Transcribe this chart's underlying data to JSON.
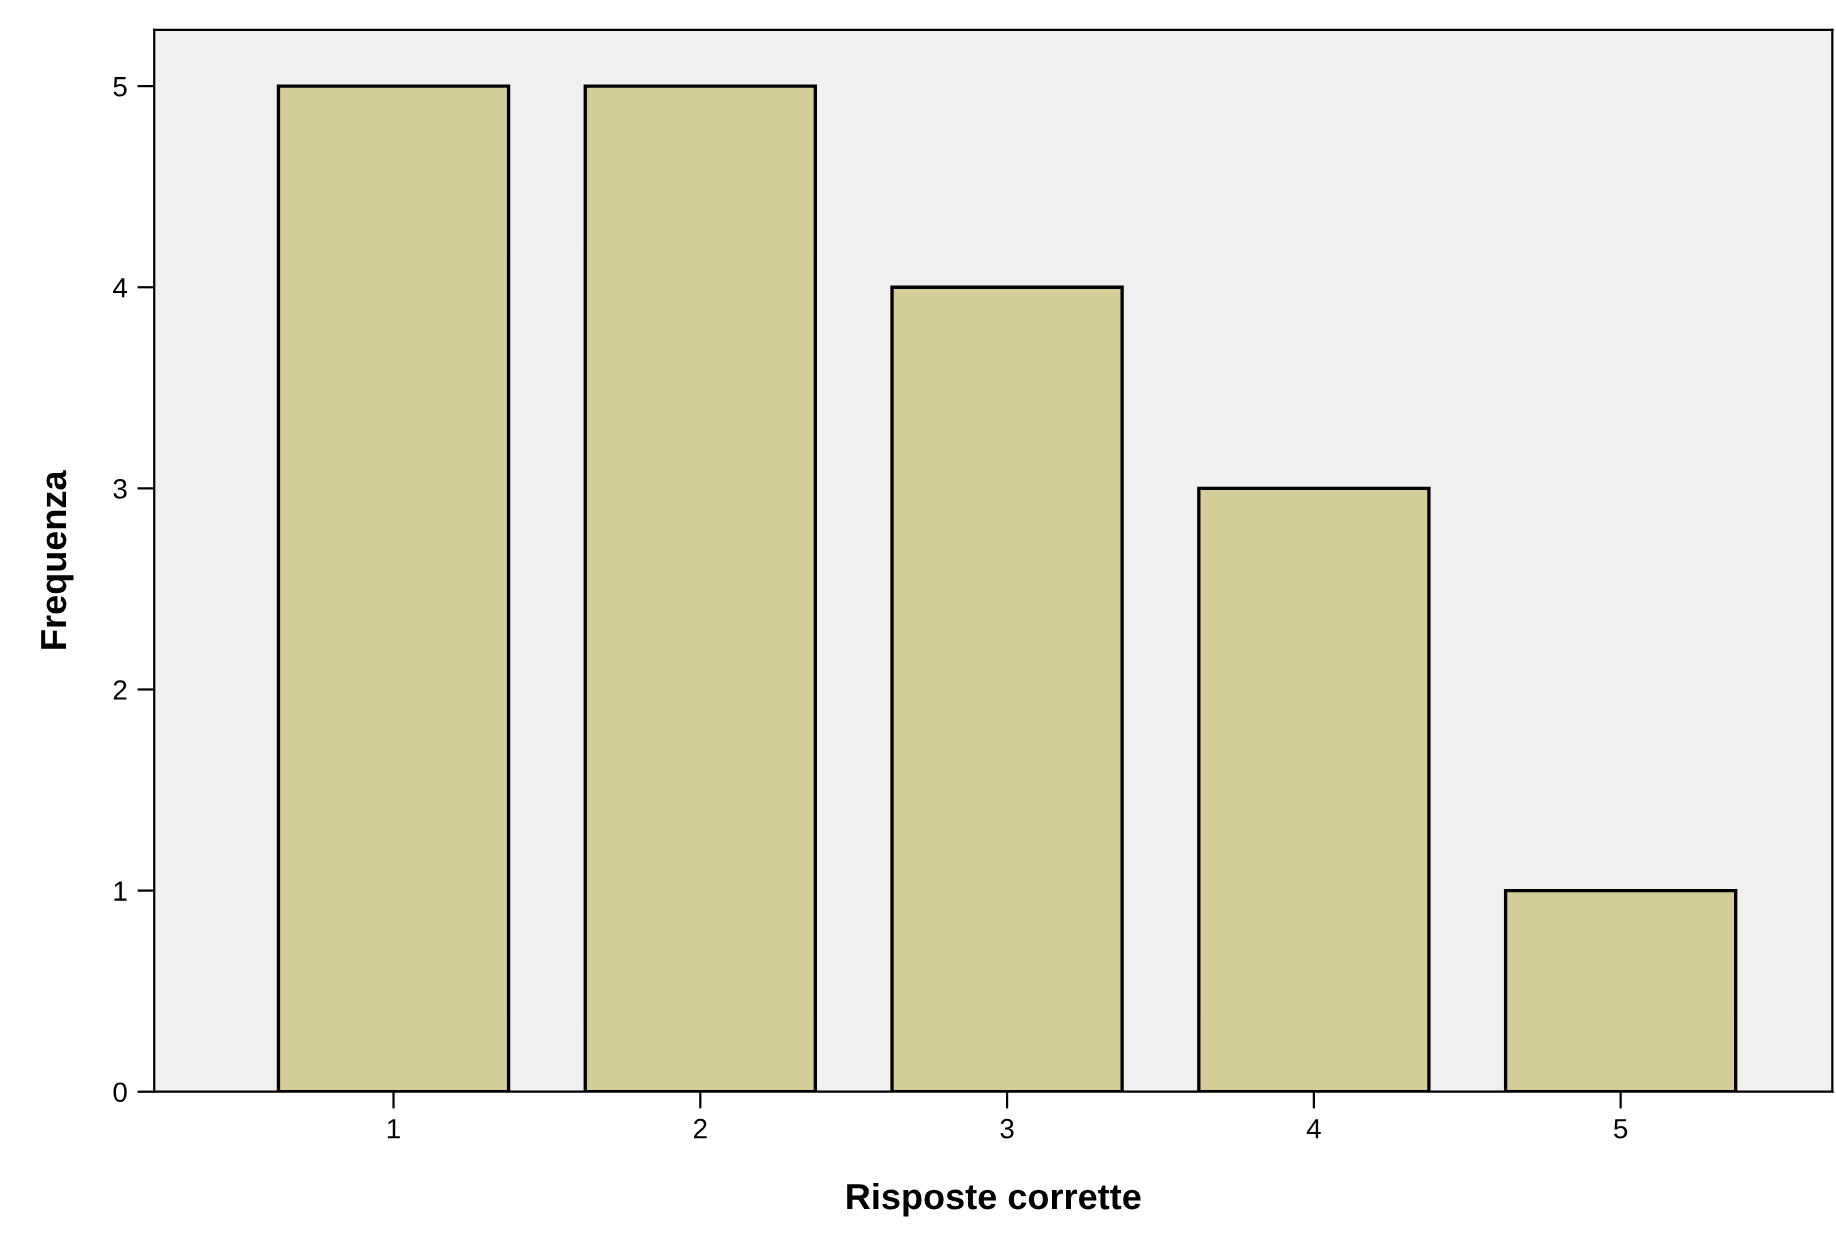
{
  "chart_data": {
    "type": "bar",
    "xlabel": "Risposte corrette",
    "ylabel": "Frequenza",
    "categories": [
      "1",
      "2",
      "3",
      "4",
      "5"
    ],
    "values": [
      5,
      5,
      4,
      3,
      1
    ],
    "color": "#d3ce99",
    "ylim": [
      0,
      5.28
    ],
    "yticks": [
      0,
      1,
      2,
      3,
      4,
      5
    ],
    "grid": false
  }
}
